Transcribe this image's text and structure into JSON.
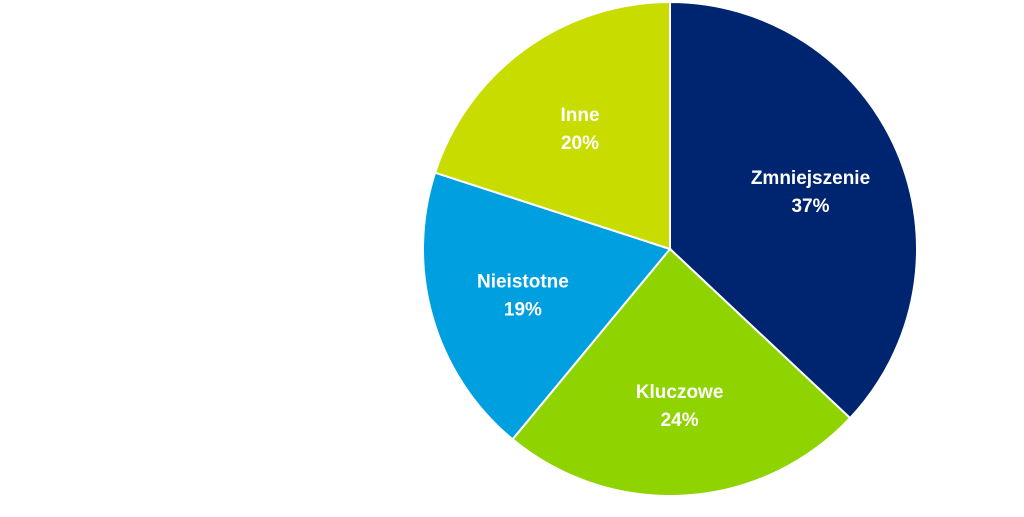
{
  "chart_data": {
    "type": "pie",
    "start_angle_deg": 0,
    "direction": "clockwise",
    "legend": "none",
    "slices": [
      {
        "label": "Zmniejszenie",
        "value": 37,
        "value_label": "37%",
        "color": "#002570"
      },
      {
        "label": "Kluczowe",
        "value": 24,
        "value_label": "24%",
        "color": "#8fd400"
      },
      {
        "label": "Nieistotne",
        "value": 19,
        "value_label": "19%",
        "color": "#00a0e0"
      },
      {
        "label": "Inne",
        "value": 20,
        "value_label": "20%",
        "color": "#c8dc00"
      }
    ]
  }
}
